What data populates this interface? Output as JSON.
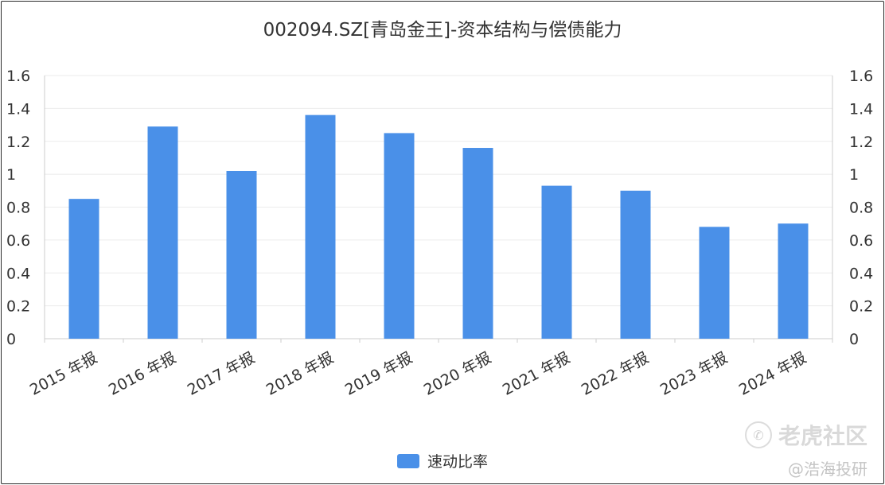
{
  "chart_data": {
    "type": "bar",
    "title": "002094.SZ[青岛金王]-资本结构与偿债能力",
    "categories": [
      "2015 年报",
      "2016 年报",
      "2017 年报",
      "2018 年报",
      "2019 年报",
      "2020 年报",
      "2021 年报",
      "2022 年报",
      "2023 年报",
      "2024 年报"
    ],
    "series": [
      {
        "name": "速动比率",
        "values": [
          0.85,
          1.29,
          1.02,
          1.36,
          1.25,
          1.16,
          0.93,
          0.9,
          0.68,
          0.7
        ]
      }
    ],
    "ylim": [
      0,
      1.6
    ],
    "yticks": [
      "0",
      "0.2",
      "0.4",
      "0.6",
      "0.8",
      "1",
      "1.2",
      "1.4",
      "1.6"
    ],
    "secondary_yticks": [
      "0",
      "0.2",
      "0.4",
      "0.6",
      "0.8",
      "1",
      "1.2",
      "1.4",
      "1.6"
    ],
    "grid": true,
    "legend_position": "bottom-center",
    "colors": {
      "bar": "#4a90e8",
      "grid": "#ebebeb",
      "axis": "#cccccc",
      "text": "#333333"
    }
  },
  "watermark": {
    "logo_text": "老虎社区",
    "sub_text": "@浩海投研"
  }
}
